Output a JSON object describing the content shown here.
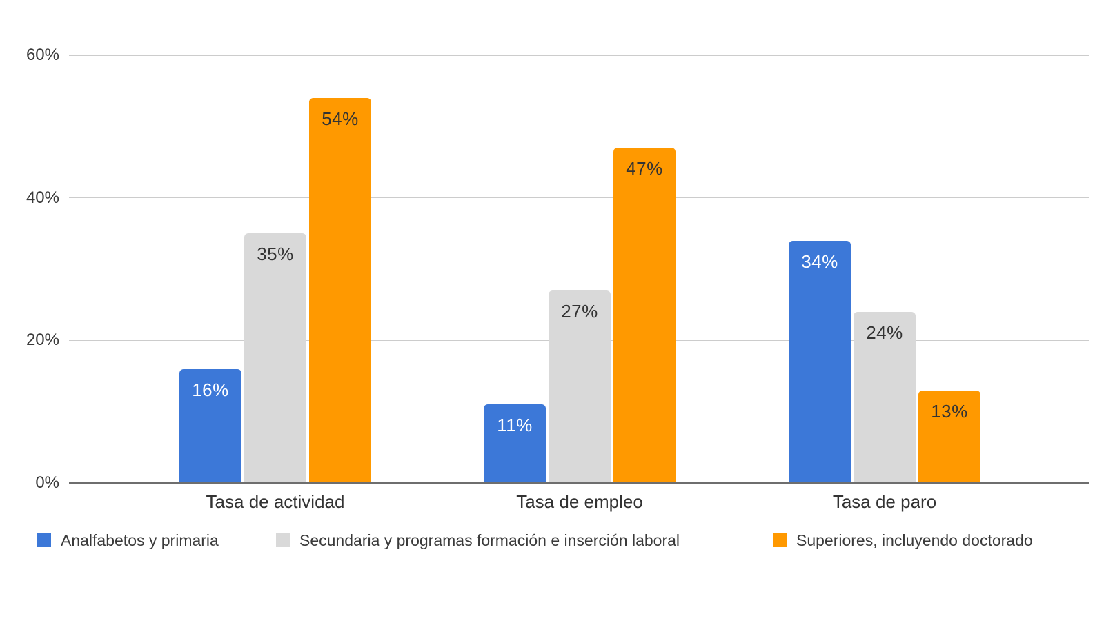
{
  "chart_data": {
    "type": "bar",
    "title": "",
    "categories": [
      "Tasa de actividad",
      "Tasa de empleo",
      "Tasa de paro"
    ],
    "series": [
      {
        "name": "Analfabetos y primaria",
        "color": "#3C78D8",
        "label_color": "#FFFFFF",
        "values": [
          16,
          11,
          34
        ]
      },
      {
        "name": "Secundaria y programas formación e inserción laboral",
        "color": "#D9D9D9",
        "label_color": "#333333",
        "values": [
          35,
          27,
          24
        ]
      },
      {
        "name": "Superiores, incluyendo doctorado",
        "color": "#FF9900",
        "label_color": "#333333",
        "values": [
          54,
          47,
          13
        ]
      }
    ],
    "value_suffix": "%",
    "value_labels": [
      [
        "16%",
        "11%",
        "34%"
      ],
      [
        "35%",
        "27%",
        "24%"
      ],
      [
        "54%",
        "47%",
        "13%"
      ]
    ],
    "xlabel": "",
    "ylabel": "",
    "ylim": [
      0,
      60
    ],
    "yticks": [
      0,
      20,
      40,
      60
    ],
    "ytick_labels": [
      "0%",
      "20%",
      "40%",
      "60%"
    ],
    "grid": true,
    "legend_position": "bottom",
    "colors": {
      "gridline": "#CCCCCC",
      "axis_line": "#6E6E6E",
      "text": "#3A3A3A",
      "background": "#FFFFFF"
    }
  }
}
